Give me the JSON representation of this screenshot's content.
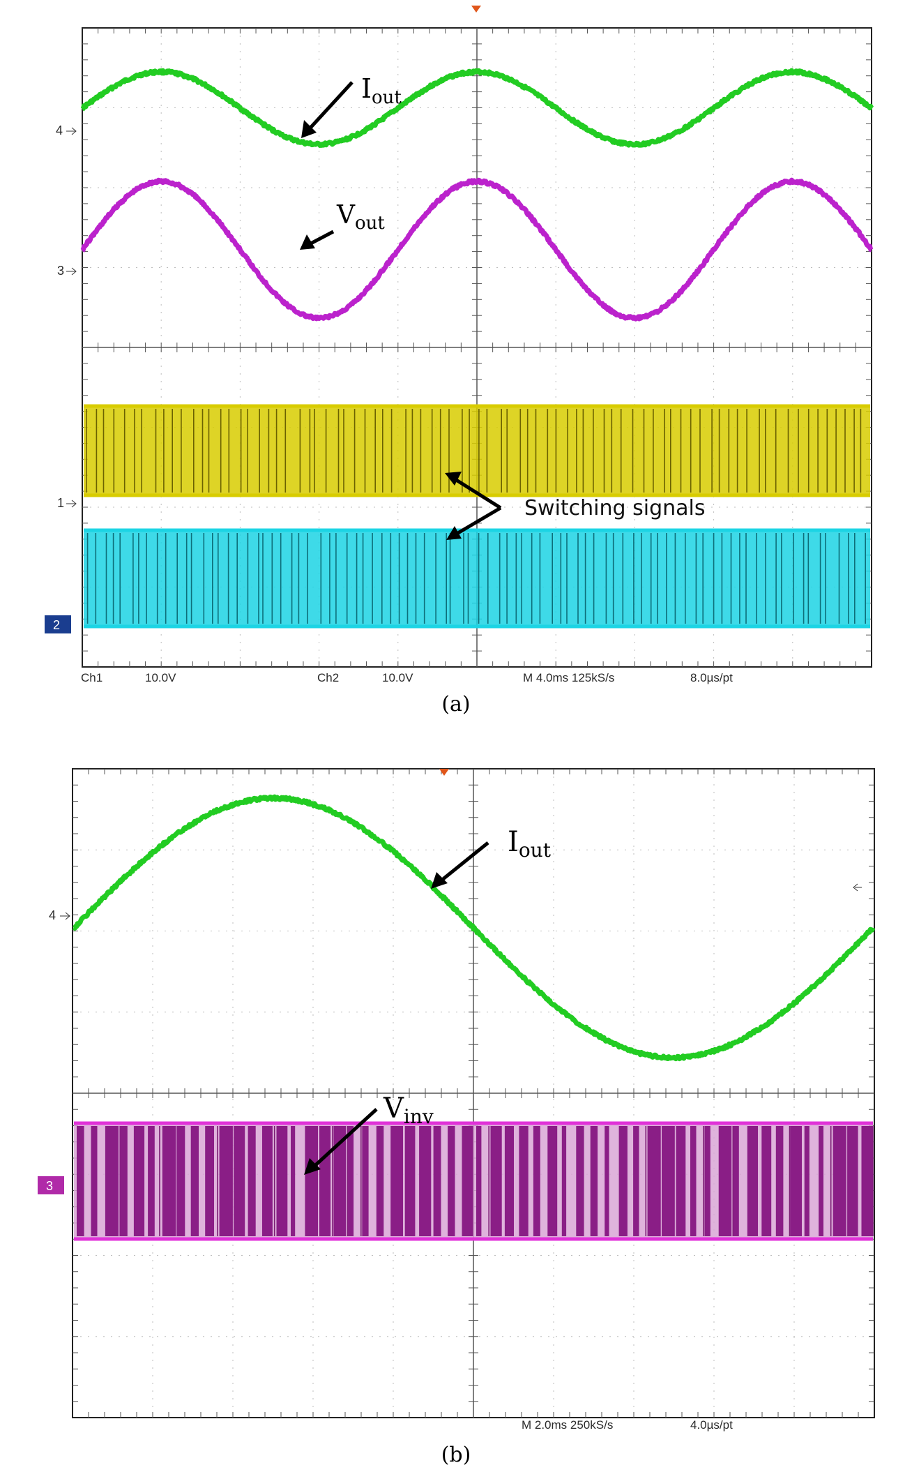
{
  "figures": [
    {
      "caption": "(a)",
      "status": {
        "ch1_label": "Ch1",
        "ch1_scale": "10.0V",
        "ch2_label": "Ch2",
        "ch2_scale": "10.0V",
        "timebase": "M 4.0ms 125kS/s",
        "resolution": "8.0µs/pt"
      },
      "markers": [
        {
          "label": "4"
        },
        {
          "label": "3"
        },
        {
          "label": "1"
        },
        {
          "label": "2"
        }
      ],
      "annotations": [
        {
          "main": "I",
          "sub": "out"
        },
        {
          "main": "V",
          "sub": "out"
        },
        {
          "main": "Switching signals",
          "sub": ""
        }
      ]
    },
    {
      "caption": "(b)",
      "status": {
        "timebase": "M 2.0ms 250kS/s",
        "resolution": "4.0µs/pt"
      },
      "markers": [
        {
          "label": "4"
        },
        {
          "label": "3"
        }
      ],
      "annotations": [
        {
          "main": "I",
          "sub": "out"
        },
        {
          "main": "V",
          "sub": "inv"
        }
      ]
    }
  ],
  "chart_data": [
    {
      "type": "line",
      "panel": "a",
      "grid": true,
      "series": [
        {
          "color": "#22cc22",
          "shape": "sine",
          "x": [
            0,
            0.5,
            1,
            1.5,
            2,
            2.5
          ],
          "y": [
            0,
            1,
            0,
            -1,
            0,
            1
          ]
        },
        {
          "color": "#bb22cc",
          "shape": "sine",
          "x": [
            0,
            0.5,
            1,
            1.5,
            2,
            2.5
          ],
          "y": [
            0,
            1,
            0,
            -1,
            0,
            1
          ]
        },
        {
          "color": "#d8cc00",
          "shape": "pwm",
          "level_high": 1,
          "level_low": 0
        },
        {
          "color": "#1cd4e4",
          "shape": "pwm",
          "level_high": 1,
          "level_low": 0
        }
      ]
    },
    {
      "type": "line",
      "panel": "b",
      "grid": true,
      "series": [
        {
          "color": "#22cc22",
          "shape": "sine",
          "x": [
            0,
            0.5,
            1,
            1.5,
            2
          ],
          "y": [
            0,
            1,
            0,
            -1,
            0
          ]
        },
        {
          "color": "#cc22cc",
          "shape": "pwm",
          "level_high": 1,
          "level_low": 0
        }
      ]
    }
  ]
}
